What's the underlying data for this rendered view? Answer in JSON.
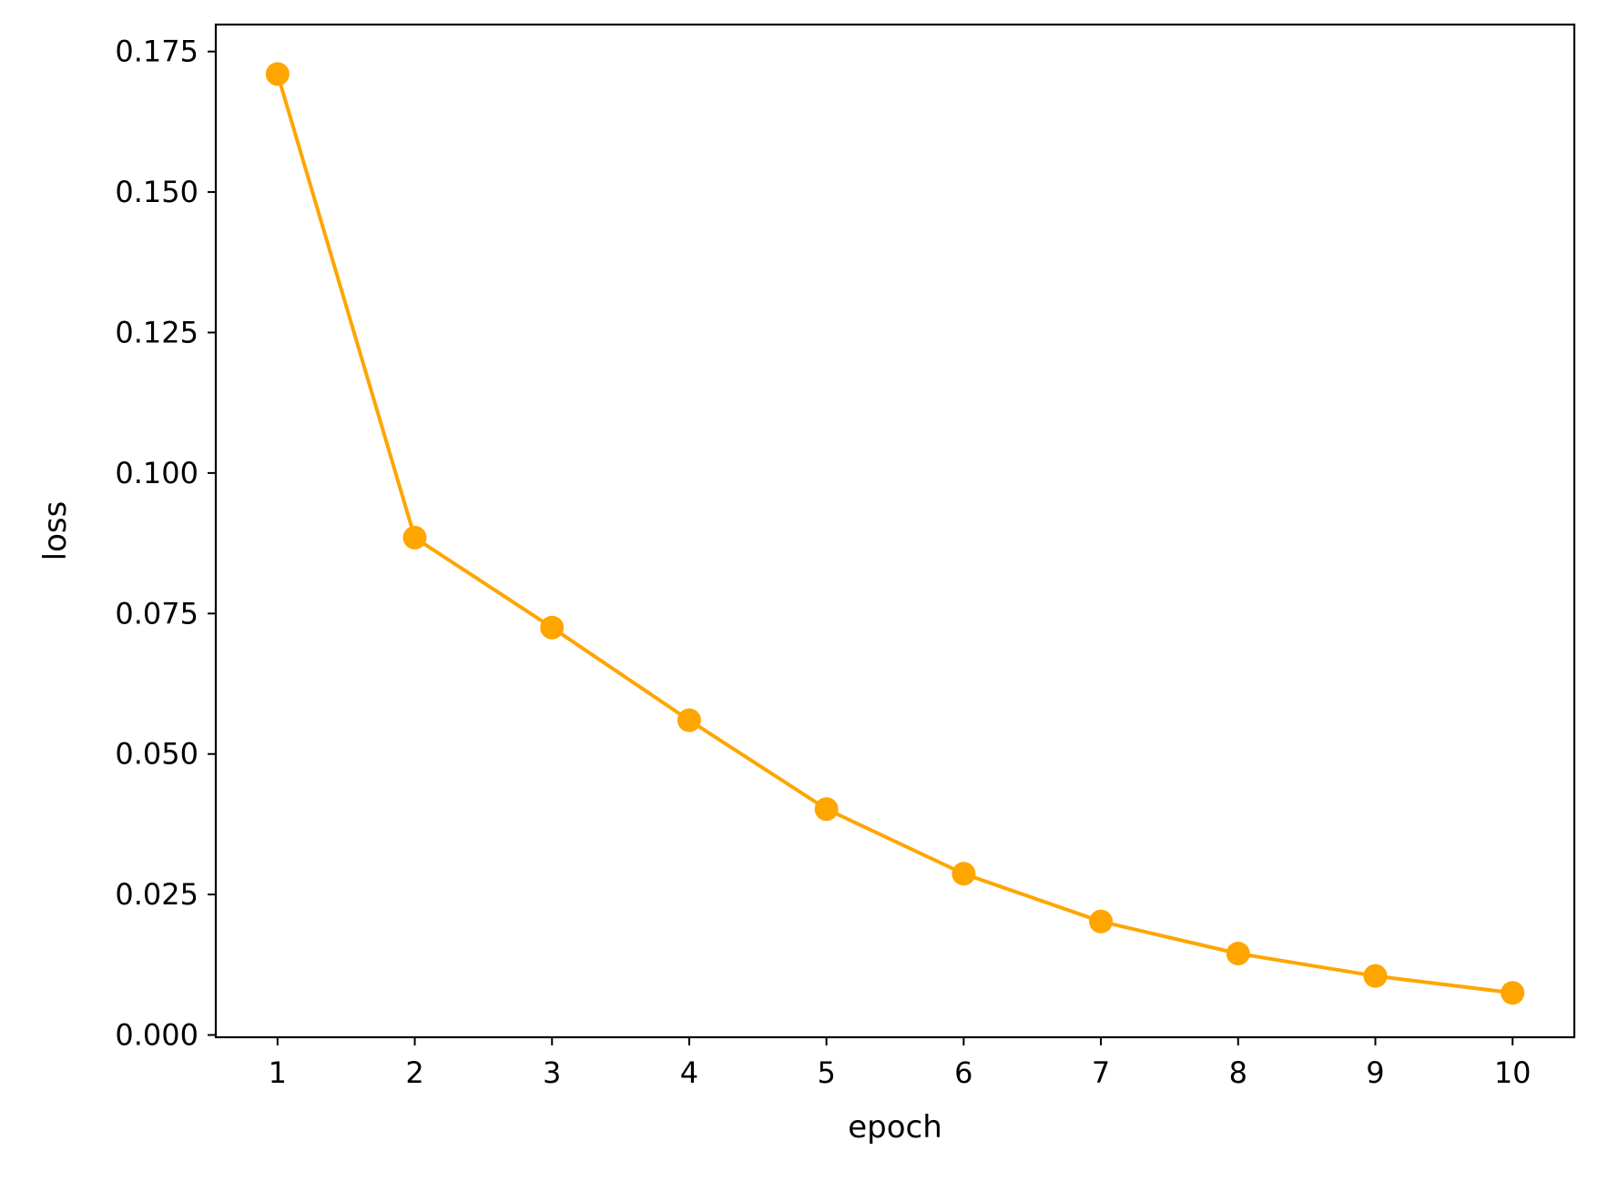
{
  "chart_data": {
    "type": "line",
    "title": "",
    "xlabel": "epoch",
    "ylabel": "loss",
    "x": [
      1,
      2,
      3,
      4,
      5,
      6,
      7,
      8,
      9,
      10
    ],
    "series": [
      {
        "values": [
          0.171,
          0.0885,
          0.0725,
          0.056,
          0.0402,
          0.0287,
          0.0202,
          0.0145,
          0.0105,
          0.0075
        ],
        "color": "#FFA500",
        "marker": "circle"
      }
    ],
    "xlim": [
      0.55,
      10.45
    ],
    "ylim": [
      -0.0004,
      0.1798
    ],
    "xticks": [
      "1",
      "2",
      "3",
      "4",
      "5",
      "6",
      "7",
      "8",
      "9",
      "10"
    ],
    "xtick_values": [
      1,
      2,
      3,
      4,
      5,
      6,
      7,
      8,
      9,
      10
    ],
    "yticks": [
      "0.000",
      "0.025",
      "0.050",
      "0.075",
      "0.100",
      "0.125",
      "0.150",
      "0.175"
    ],
    "ytick_values": [
      0,
      0.025,
      0.05,
      0.075,
      0.1,
      0.125,
      0.15,
      0.175
    ],
    "grid": false,
    "legend": "none"
  }
}
